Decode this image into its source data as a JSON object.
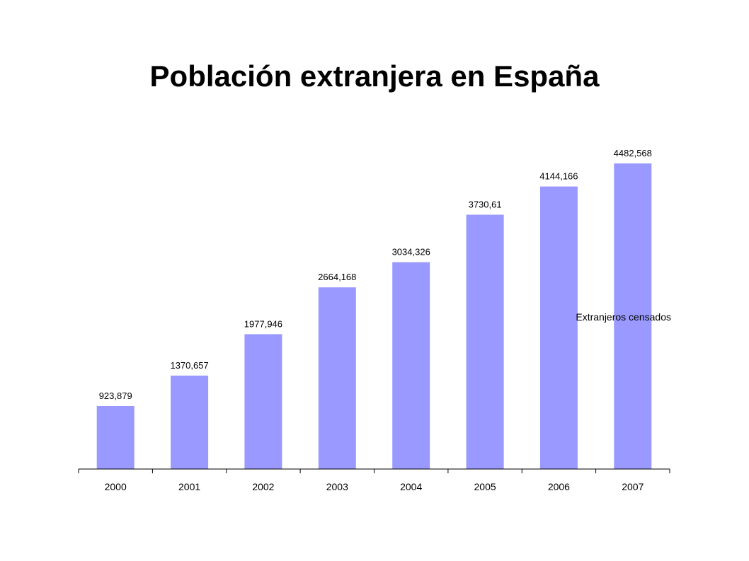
{
  "chart_data": {
    "type": "bar",
    "title": "Población extranjera en España",
    "categories": [
      "2000",
      "2001",
      "2002",
      "2003",
      "2004",
      "2005",
      "2006",
      "2007"
    ],
    "series": [
      {
        "name": "Extranjeros censados",
        "values": [
          923.879,
          1370.657,
          1977.946,
          2664.168,
          3034.326,
          3730.61,
          4144.166,
          4482.568
        ],
        "labels": [
          "923,879",
          "1370,657",
          "1977,946",
          "2664,168",
          "3034,326",
          "3730,61",
          "4144,166",
          "4482,568"
        ],
        "color": "#9999ff"
      }
    ],
    "xlabel": "",
    "ylabel": "",
    "ylim": [
      0,
      4600
    ],
    "grid": false,
    "y_axis_visible": false,
    "legend": {
      "placement": "right",
      "text": "Extranjeros censados"
    }
  }
}
